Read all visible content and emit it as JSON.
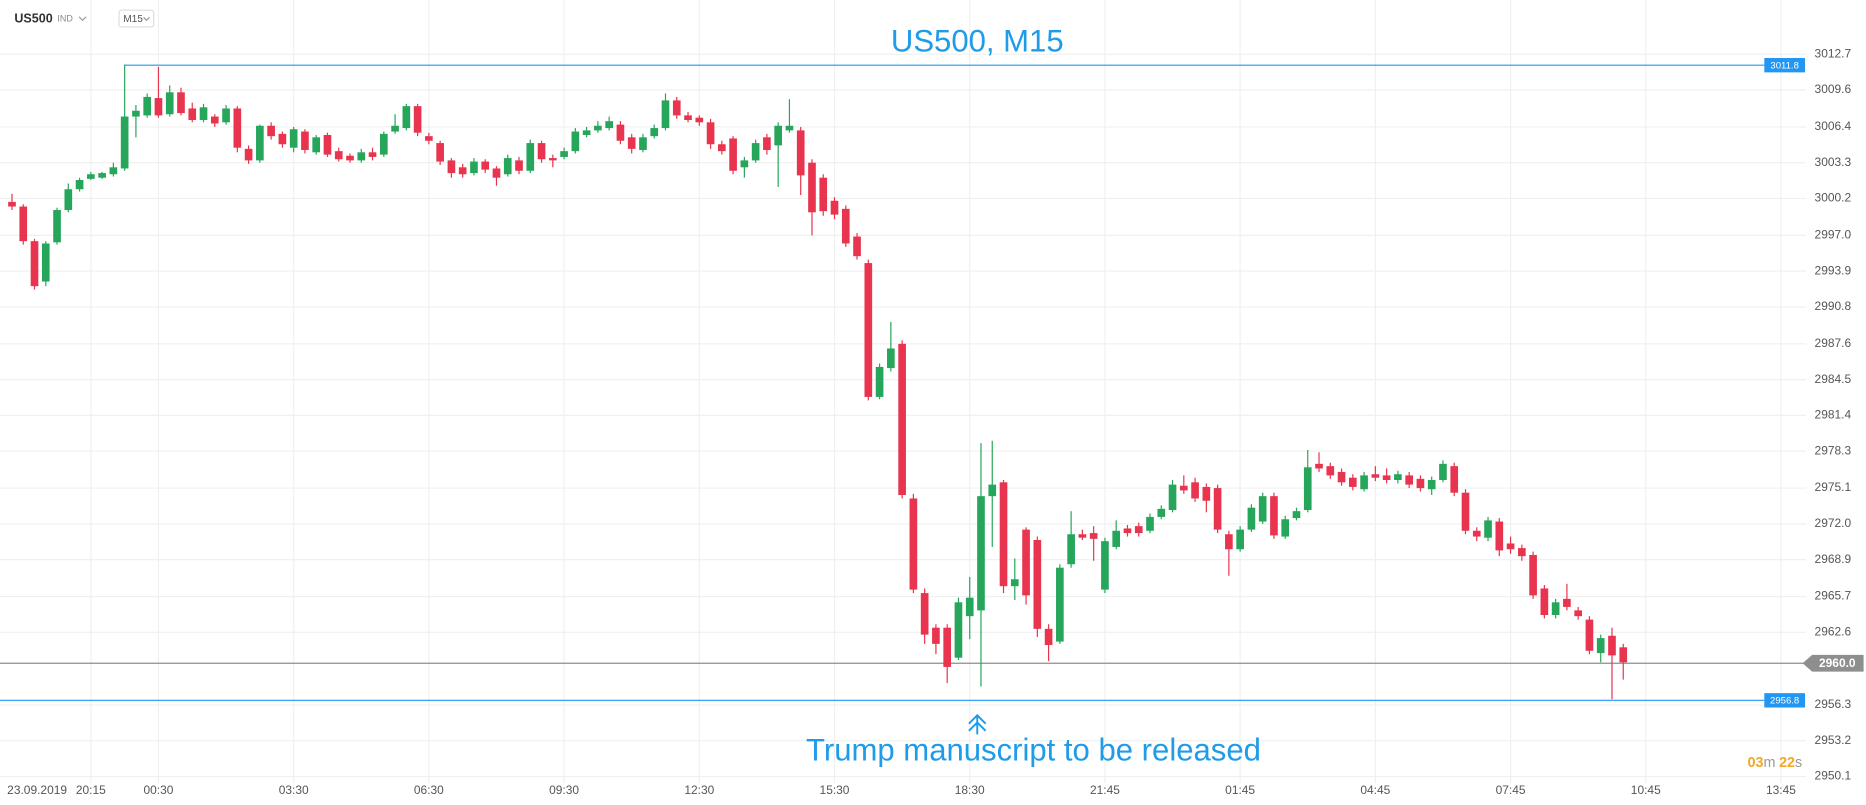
{
  "header": {
    "symbol": "US500",
    "market": "IND",
    "timeframe": "M15"
  },
  "chart_data": {
    "type": "candlestick",
    "title": "US500, M15",
    "annotation": "Trump manuscript to be released",
    "categories": [
      "23.09.2019",
      null,
      null,
      null,
      null,
      null,
      null,
      "20:15",
      null,
      null,
      null,
      null,
      null,
      "00:30",
      null,
      null,
      null,
      null,
      null,
      null,
      null,
      null,
      null,
      null,
      null,
      "03:30",
      null,
      null,
      null,
      null,
      null,
      null,
      null,
      null,
      null,
      null,
      null,
      "06:30",
      null,
      null,
      null,
      null,
      null,
      null,
      null,
      null,
      null,
      null,
      null,
      "09:30",
      null,
      null,
      null,
      null,
      null,
      null,
      null,
      null,
      null,
      null,
      null,
      "12:30",
      null,
      null,
      null,
      null,
      null,
      null,
      null,
      null,
      null,
      null,
      null,
      "15:30",
      null,
      null,
      null,
      null,
      null,
      null,
      null,
      null,
      null,
      null,
      null,
      "18:30",
      null,
      null,
      null,
      null,
      null,
      null,
      null,
      null,
      null,
      null,
      null,
      "21:45",
      null,
      null,
      null,
      null,
      null,
      null,
      null,
      null,
      null,
      null,
      null,
      "01:45",
      null,
      null,
      null,
      null,
      null,
      null,
      null,
      null,
      null,
      null,
      null,
      "04:45",
      null,
      null,
      null,
      null,
      null,
      null,
      null,
      null,
      null,
      null,
      null,
      "07:45",
      null,
      null,
      null,
      null,
      null,
      null,
      null,
      null,
      null,
      null,
      null,
      "10:45",
      null,
      null,
      null,
      null,
      null,
      null,
      null,
      null,
      null,
      null,
      null,
      "13:45"
    ],
    "open": [
      2999.9,
      2999.5,
      2996.5,
      2993.0,
      2996.4,
      2999.2,
      3001.0,
      3001.9,
      3002.0,
      3002.3,
      3002.8,
      3007.3,
      3007.4,
      3008.9,
      3007.5,
      3009.4,
      3008.0,
      3007.0,
      3007.3,
      3006.8,
      3008.0,
      3004.5,
      3003.5,
      3006.5,
      3005.8,
      3004.6,
      3006.0,
      3004.2,
      3005.7,
      3004.3,
      3003.9,
      3003.5,
      3004.2,
      3004.0,
      3006.0,
      3006.3,
      3008.2,
      3005.6,
      3005.0,
      3003.5,
      3002.9,
      3002.4,
      3003.4,
      3002.8,
      3002.3,
      3003.5,
      3002.6,
      3005.0,
      3003.7,
      3003.8,
      3004.3,
      3005.7,
      3006.1,
      3006.3,
      3006.6,
      3005.5,
      3004.4,
      3005.6,
      3006.3,
      3008.7,
      3007.4,
      3007.2,
      3006.8,
      3004.9,
      3005.4,
      3002.9,
      3003.5,
      3005.5,
      3004.8,
      3006.1,
      3006.1,
      3003.3,
      3002.0,
      3000.0,
      2999.3,
      2996.9,
      2994.6,
      2983.0,
      2985.5,
      2987.6,
      2974.2,
      2966.0,
      2963.0,
      2963.0,
      2960.4,
      2964.0,
      2964.5,
      2974.4,
      2975.6,
      2966.6,
      2971.5,
      2970.6,
      2962.9,
      2961.8,
      2968.5,
      2971.1,
      2971.2,
      2966.3,
      2970.0,
      2971.6,
      2971.8,
      2971.4,
      2972.6,
      2973.2,
      2975.3,
      2975.6,
      2975.2,
      2975.1,
      2971.1,
      2969.8,
      2971.5,
      2972.2,
      2974.4,
      2970.9,
      2972.5,
      2973.2,
      2977.2,
      2977.0,
      2976.5,
      2976.0,
      2975.0,
      2976.3,
      2976.2,
      2975.8,
      2976.2,
      2975.9,
      2975.0,
      2975.8,
      2977.0,
      2974.7,
      2971.4,
      2970.8,
      2972.2,
      2970.3,
      2969.9,
      2969.3,
      2966.4,
      2964.1,
      2965.5,
      2964.5,
      2963.7,
      2960.8,
      2962.3,
      2961.3,
      null,
      null,
      null,
      null,
      null,
      null,
      null,
      null,
      null,
      null,
      null,
      null,
      null,
      null
    ],
    "high": [
      3000.6,
      2999.7,
      2996.7,
      2996.5,
      2999.4,
      3001.5,
      3002.0,
      3002.5,
      3002.5,
      3003.3,
      3011.8,
      3008.3,
      3009.3,
      3011.6,
      3010.0,
      3009.8,
      3008.5,
      3008.4,
      3007.5,
      3008.3,
      3008.2,
      3004.8,
      3006.6,
      3006.8,
      3006.0,
      3006.4,
      3006.2,
      3005.7,
      3005.9,
      3004.6,
      3004.1,
      3004.5,
      3004.6,
      3006.0,
      3007.5,
      3008.4,
      3008.4,
      3005.9,
      3005.2,
      3003.7,
      3003.2,
      3003.7,
      3003.6,
      3003.0,
      3004.0,
      3003.8,
      3005.3,
      3005.2,
      3004.0,
      3004.6,
      3006.3,
      3006.4,
      3006.9,
      3007.3,
      3006.9,
      3005.8,
      3005.8,
      3006.6,
      3009.3,
      3009.0,
      3007.7,
      3007.4,
      3007.1,
      3005.2,
      3005.6,
      3003.8,
      3005.3,
      3005.8,
      3006.8,
      3008.8,
      3006.4,
      3003.6,
      3002.3,
      3000.3,
      2999.6,
      2997.2,
      2994.9,
      2985.9,
      2989.5,
      2987.9,
      2974.6,
      2966.4,
      2963.3,
      2963.3,
      2965.6,
      2967.4,
      2979.0,
      2979.2,
      2975.8,
      2969.0,
      2971.7,
      2970.9,
      2963.3,
      2968.5,
      2973.1,
      2971.5,
      2971.8,
      2970.8,
      2972.3,
      2971.9,
      2972.1,
      2972.9,
      2973.6,
      2975.8,
      2976.2,
      2976.0,
      2975.5,
      2975.4,
      2971.4,
      2971.8,
      2973.7,
      2974.7,
      2974.7,
      2972.7,
      2973.4,
      2978.4,
      2978.2,
      2977.3,
      2976.8,
      2976.3,
      2976.5,
      2977.0,
      2976.8,
      2976.6,
      2976.5,
      2976.2,
      2976.1,
      2977.5,
      2977.3,
      2975.0,
      2971.7,
      2972.6,
      2972.5,
      2970.9,
      2970.2,
      2969.6,
      2966.7,
      2965.5,
      2966.8,
      2964.8,
      2964.0,
      2962.4,
      2963.0,
      2961.6,
      null,
      null,
      null,
      null,
      null,
      null,
      null,
      null,
      null,
      null,
      null,
      null,
      null,
      null
    ],
    "low": [
      2999.2,
      2996.2,
      2992.3,
      2992.6,
      2996.2,
      2999.0,
      3000.8,
      3001.8,
      3001.9,
      3002.1,
      3002.6,
      3005.5,
      3007.2,
      3007.2,
      3007.3,
      3007.4,
      3006.8,
      3006.8,
      3006.4,
      3006.6,
      3004.2,
      3003.2,
      3003.3,
      3005.3,
      3004.6,
      3004.2,
      3004.1,
      3004.0,
      3003.8,
      3003.4,
      3003.3,
      3003.3,
      3003.5,
      3003.8,
      3005.8,
      3006.1,
      3005.6,
      3004.9,
      3003.1,
      3002.0,
      3002.0,
      3002.2,
      3002.4,
      3001.3,
      3002.1,
      3002.3,
      3002.4,
      3003.3,
      3002.9,
      3003.6,
      3004.1,
      3005.5,
      3005.9,
      3006.1,
      3004.9,
      3004.1,
      3004.2,
      3005.4,
      3006.1,
      3007.1,
      3006.8,
      3006.5,
      3004.5,
      3004.0,
      3002.3,
      3002.0,
      3003.3,
      3004.0,
      3001.2,
      3005.9,
      3000.5,
      2997.0,
      2998.7,
      2998.4,
      2996.0,
      2994.9,
      2982.7,
      2982.8,
      2985.2,
      2974.2,
      2966.0,
      2961.6,
      2960.7,
      2958.2,
      2960.2,
      2962.0,
      2957.9,
      2970.0,
      2966.0,
      2965.4,
      2965.0,
      2962.2,
      2960.1,
      2961.6,
      2968.2,
      2970.6,
      2968.8,
      2966.0,
      2969.8,
      2970.9,
      2970.9,
      2971.2,
      2972.4,
      2973.0,
      2974.6,
      2973.9,
      2973.0,
      2971.2,
      2967.5,
      2969.6,
      2971.3,
      2972.0,
      2970.7,
      2970.7,
      2972.3,
      2973.0,
      2976.5,
      2975.9,
      2975.3,
      2974.9,
      2974.8,
      2975.7,
      2975.5,
      2975.5,
      2975.1,
      2974.8,
      2974.5,
      2975.6,
      2974.4,
      2971.1,
      2970.5,
      2970.5,
      2969.2,
      2969.4,
      2968.8,
      2965.5,
      2963.8,
      2963.8,
      2964.5,
      2963.7,
      2960.7,
      2960.0,
      2956.8,
      2958.5,
      null,
      null,
      null,
      null,
      null,
      null,
      null,
      null,
      null,
      null,
      null,
      null,
      null,
      null
    ],
    "close": [
      2999.5,
      2996.5,
      2992.6,
      2996.3,
      2999.2,
      3001.0,
      3001.8,
      3002.3,
      3002.4,
      3002.9,
      3007.3,
      3007.8,
      3009.0,
      3007.4,
      3009.4,
      3007.6,
      3007.0,
      3008.1,
      3006.7,
      3008.0,
      3004.6,
      3003.5,
      3006.5,
      3005.6,
      3004.9,
      3006.2,
      3004.4,
      3005.5,
      3004.0,
      3003.6,
      3003.5,
      3004.2,
      3003.8,
      3005.8,
      3006.5,
      3008.2,
      3005.9,
      3005.2,
      3003.4,
      3002.4,
      3002.3,
      3003.4,
      3002.7,
      3002.0,
      3003.7,
      3002.6,
      3005.0,
      3003.6,
      3003.5,
      3004.3,
      3006.0,
      3006.1,
      3006.5,
      3006.9,
      3005.2,
      3004.5,
      3005.5,
      3006.3,
      3008.7,
      3007.4,
      3007.0,
      3006.8,
      3004.9,
      3004.3,
      3002.6,
      3003.5,
      3005.0,
      3004.4,
      3006.5,
      3006.5,
      3002.2,
      2999.0,
      2999.1,
      2998.8,
      2996.3,
      2995.2,
      2983.0,
      2985.6,
      2987.2,
      2974.5,
      2966.3,
      2962.4,
      2961.6,
      2959.6,
      2965.2,
      2965.6,
      2974.4,
      2975.4,
      2966.6,
      2967.2,
      2965.8,
      2962.9,
      2961.5,
      2968.2,
      2971.1,
      2970.8,
      2970.7,
      2970.5,
      2971.4,
      2971.2,
      2971.2,
      2972.6,
      2973.3,
      2975.4,
      2974.9,
      2974.2,
      2974.0,
      2971.5,
      2969.8,
      2971.5,
      2973.4,
      2974.4,
      2971.0,
      2972.4,
      2973.1,
      2976.9,
      2976.8,
      2976.2,
      2975.6,
      2975.2,
      2976.2,
      2976.0,
      2975.8,
      2976.3,
      2975.4,
      2975.1,
      2975.8,
      2977.2,
      2974.7,
      2971.4,
      2970.9,
      2972.3,
      2969.7,
      2969.8,
      2969.2,
      2965.8,
      2964.1,
      2965.2,
      2964.8,
      2964.0,
      2961.0,
      2962.1,
      2960.6,
      2960.0,
      null,
      null,
      null,
      null,
      null,
      null,
      null,
      null,
      null,
      null,
      null,
      null,
      null,
      null
    ],
    "up_color": "#26a65b",
    "down_color": "#e8344e",
    "ylim": [
      2949.5,
      3017.4
    ],
    "yticks": [
      3012.7,
      3009.6,
      3006.4,
      3003.3,
      3000.2,
      {
        "value": 2997,
        "label": "2997.0"
      },
      2993.9,
      2990.8,
      2987.6,
      2984.5,
      2981.4,
      2978.3,
      2975.1,
      {
        "value": 2972,
        "label": "2972.0"
      },
      2968.9,
      2965.7,
      2962.6,
      2956.3,
      2953.2,
      2950.1
    ],
    "grid": true,
    "price_lines": [
      {
        "value": 3011.8,
        "color": "#2196f3"
      },
      {
        "value": 2956.8,
        "color": "#2196f3"
      }
    ],
    "current_price": {
      "value": 2960,
      "label": "2960.0",
      "color": "#8e8e8e"
    }
  },
  "timer": {
    "minutes": "03",
    "minutes_unit": "m",
    "seconds": "22",
    "seconds_unit": "s"
  }
}
